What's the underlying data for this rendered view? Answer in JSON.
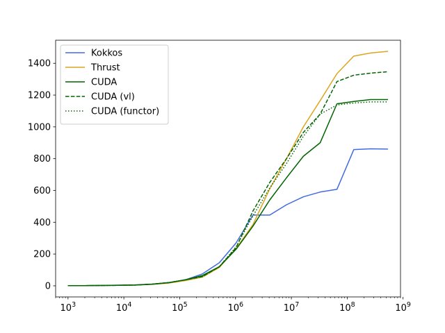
{
  "chart_data": {
    "type": "line",
    "title": "",
    "xlabel": "",
    "ylabel": "",
    "xscale": "log",
    "xlim": [
      600,
      900000000
    ],
    "ylim": [
      -70,
      1545
    ],
    "grid": false,
    "legend_placement": "top-left",
    "x": [
      1000,
      2000,
      4000,
      8000,
      16000,
      32000,
      64000,
      128000,
      256000,
      512000,
      1024000,
      2048000,
      4096000,
      8192000,
      16384000,
      32768000,
      65536000,
      131072000,
      262144000,
      536870912
    ],
    "x_ticks": [
      {
        "value": 1000,
        "base": "10",
        "exp": "3"
      },
      {
        "value": 10000,
        "base": "10",
        "exp": "4"
      },
      {
        "value": 100000,
        "base": "10",
        "exp": "5"
      },
      {
        "value": 1000000,
        "base": "10",
        "exp": "6"
      },
      {
        "value": 10000000,
        "base": "10",
        "exp": "7"
      },
      {
        "value": 100000000,
        "base": "10",
        "exp": "8"
      },
      {
        "value": 1000000000,
        "base": "10",
        "exp": "9"
      }
    ],
    "y_ticks": [
      {
        "value": 0,
        "label": "0"
      },
      {
        "value": 200,
        "label": "200"
      },
      {
        "value": 400,
        "label": "400"
      },
      {
        "value": 600,
        "label": "600"
      },
      {
        "value": 800,
        "label": "800"
      },
      {
        "value": 1000,
        "label": "1000"
      },
      {
        "value": 1200,
        "label": "1200"
      },
      {
        "value": 1400,
        "label": "1400"
      }
    ],
    "series": [
      {
        "name": "Kokkos",
        "color": "#4169e1",
        "dash": "solid",
        "values": [
          1,
          1,
          2,
          4,
          6,
          11,
          20,
          38,
          75,
          145,
          270,
          445,
          445,
          510,
          560,
          590,
          607,
          857,
          862,
          860
        ]
      },
      {
        "name": "Thrust",
        "color": "#daa520",
        "dash": "solid",
        "values": [
          1,
          1,
          2,
          3,
          5,
          9,
          17,
          33,
          55,
          115,
          235,
          385,
          610,
          800,
          1000,
          1165,
          1335,
          1445,
          1465,
          1475
        ]
      },
      {
        "name": "CUDA",
        "color": "#006400",
        "dash": "solid",
        "values": [
          1,
          1,
          2,
          3,
          5,
          10,
          20,
          38,
          65,
          120,
          230,
          375,
          540,
          680,
          815,
          900,
          1145,
          1160,
          1172,
          1172
        ]
      },
      {
        "name": "CUDA (vl)",
        "color": "#006400",
        "dash": "dashed",
        "values": [
          1,
          1,
          2,
          3,
          5,
          10,
          20,
          38,
          58,
          120,
          240,
          470,
          650,
          800,
          965,
          1080,
          1285,
          1325,
          1338,
          1347
        ]
      },
      {
        "name": "CUDA (functor)",
        "color": "#006400",
        "dash": "dotted",
        "values": [
          1,
          1,
          2,
          3,
          5,
          10,
          20,
          38,
          60,
          120,
          245,
          440,
          615,
          770,
          940,
          1080,
          1138,
          1150,
          1157,
          1157
        ]
      }
    ]
  }
}
